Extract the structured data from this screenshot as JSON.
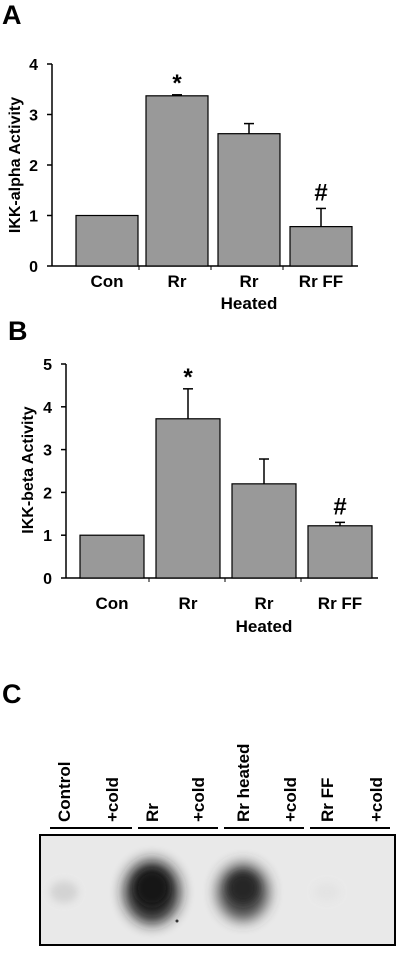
{
  "chart_data": [
    {
      "type": "bar",
      "panel": "A",
      "ylabel": "IKK-alpha Activity",
      "ylim": [
        0,
        4
      ],
      "yticks": [
        "0",
        "1",
        "2",
        "3",
        "4"
      ],
      "categories": [
        "Con",
        "Rr",
        "Rr",
        "Rr FF"
      ],
      "category_sublabels": [
        "",
        "",
        "Heated",
        ""
      ],
      "values": [
        1.0,
        3.37,
        2.62,
        0.78
      ],
      "errors": [
        0,
        0.02,
        0.2,
        0.36
      ],
      "annotations": [
        "",
        "*",
        "",
        "#"
      ],
      "bar_color": "#999999"
    },
    {
      "type": "bar",
      "panel": "B",
      "ylabel": "IKK-beta Activity",
      "ylim": [
        0,
        5
      ],
      "yticks": [
        "0",
        "1",
        "2",
        "3",
        "4",
        "5"
      ],
      "categories": [
        "Con",
        "Rr",
        "Rr",
        "Rr FF"
      ],
      "category_sublabels": [
        "",
        "",
        "Heated",
        ""
      ],
      "values": [
        1.0,
        3.72,
        2.2,
        1.22
      ],
      "errors": [
        0,
        0.7,
        0.58,
        0.08
      ],
      "annotations": [
        "",
        "*",
        "",
        "#"
      ],
      "bar_color": "#999999"
    }
  ],
  "gel": {
    "panel": "C",
    "lanes": [
      "Control",
      "+cold",
      "Rr",
      "+cold",
      "Rr heated",
      "+cold",
      "Rr FF",
      "+cold"
    ],
    "band_intensity": [
      0.12,
      0.02,
      1.0,
      0.02,
      0.85,
      0.02,
      0.04,
      0.02
    ]
  }
}
